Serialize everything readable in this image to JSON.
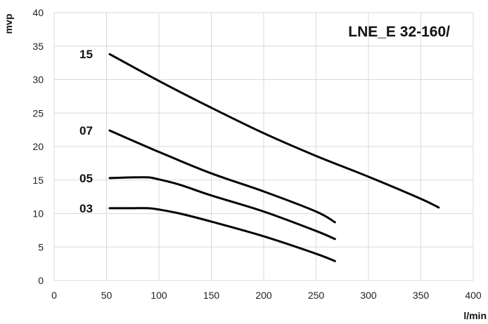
{
  "chart_data": {
    "type": "line",
    "title": "LNE_E 32-160/",
    "xlabel": "l/min",
    "ylabel": "mvp",
    "xlim": [
      0,
      400
    ],
    "ylim": [
      0,
      40
    ],
    "x_ticks": [
      0,
      50,
      100,
      150,
      200,
      250,
      300,
      350,
      400
    ],
    "y_ticks": [
      0,
      5,
      10,
      15,
      20,
      25,
      30,
      35,
      40
    ],
    "grid": true,
    "line_color": "#000000",
    "grid_color": "#d9d9d9",
    "series": [
      {
        "label": "15",
        "points": [
          [
            53,
            33.8
          ],
          [
            100,
            29.8
          ],
          [
            150,
            25.8
          ],
          [
            200,
            22.0
          ],
          [
            250,
            18.6
          ],
          [
            300,
            15.5
          ],
          [
            350,
            12.2
          ],
          [
            367,
            10.9
          ]
        ]
      },
      {
        "label": "07",
        "points": [
          [
            53,
            22.4
          ],
          [
            100,
            19.2
          ],
          [
            150,
            16.0
          ],
          [
            200,
            13.3
          ],
          [
            250,
            10.3
          ],
          [
            268,
            8.7
          ]
        ]
      },
      {
        "label": "05",
        "points": [
          [
            53,
            15.3
          ],
          [
            75,
            15.4
          ],
          [
            90,
            15.4
          ],
          [
            100,
            15.1
          ],
          [
            120,
            14.3
          ],
          [
            150,
            12.7
          ],
          [
            200,
            10.3
          ],
          [
            250,
            7.4
          ],
          [
            268,
            6.2
          ]
        ]
      },
      {
        "label": "03",
        "points": [
          [
            53,
            10.8
          ],
          [
            75,
            10.8
          ],
          [
            90,
            10.8
          ],
          [
            100,
            10.6
          ],
          [
            120,
            10.0
          ],
          [
            150,
            8.8
          ],
          [
            200,
            6.6
          ],
          [
            250,
            4.0
          ],
          [
            268,
            2.9
          ]
        ]
      }
    ]
  }
}
